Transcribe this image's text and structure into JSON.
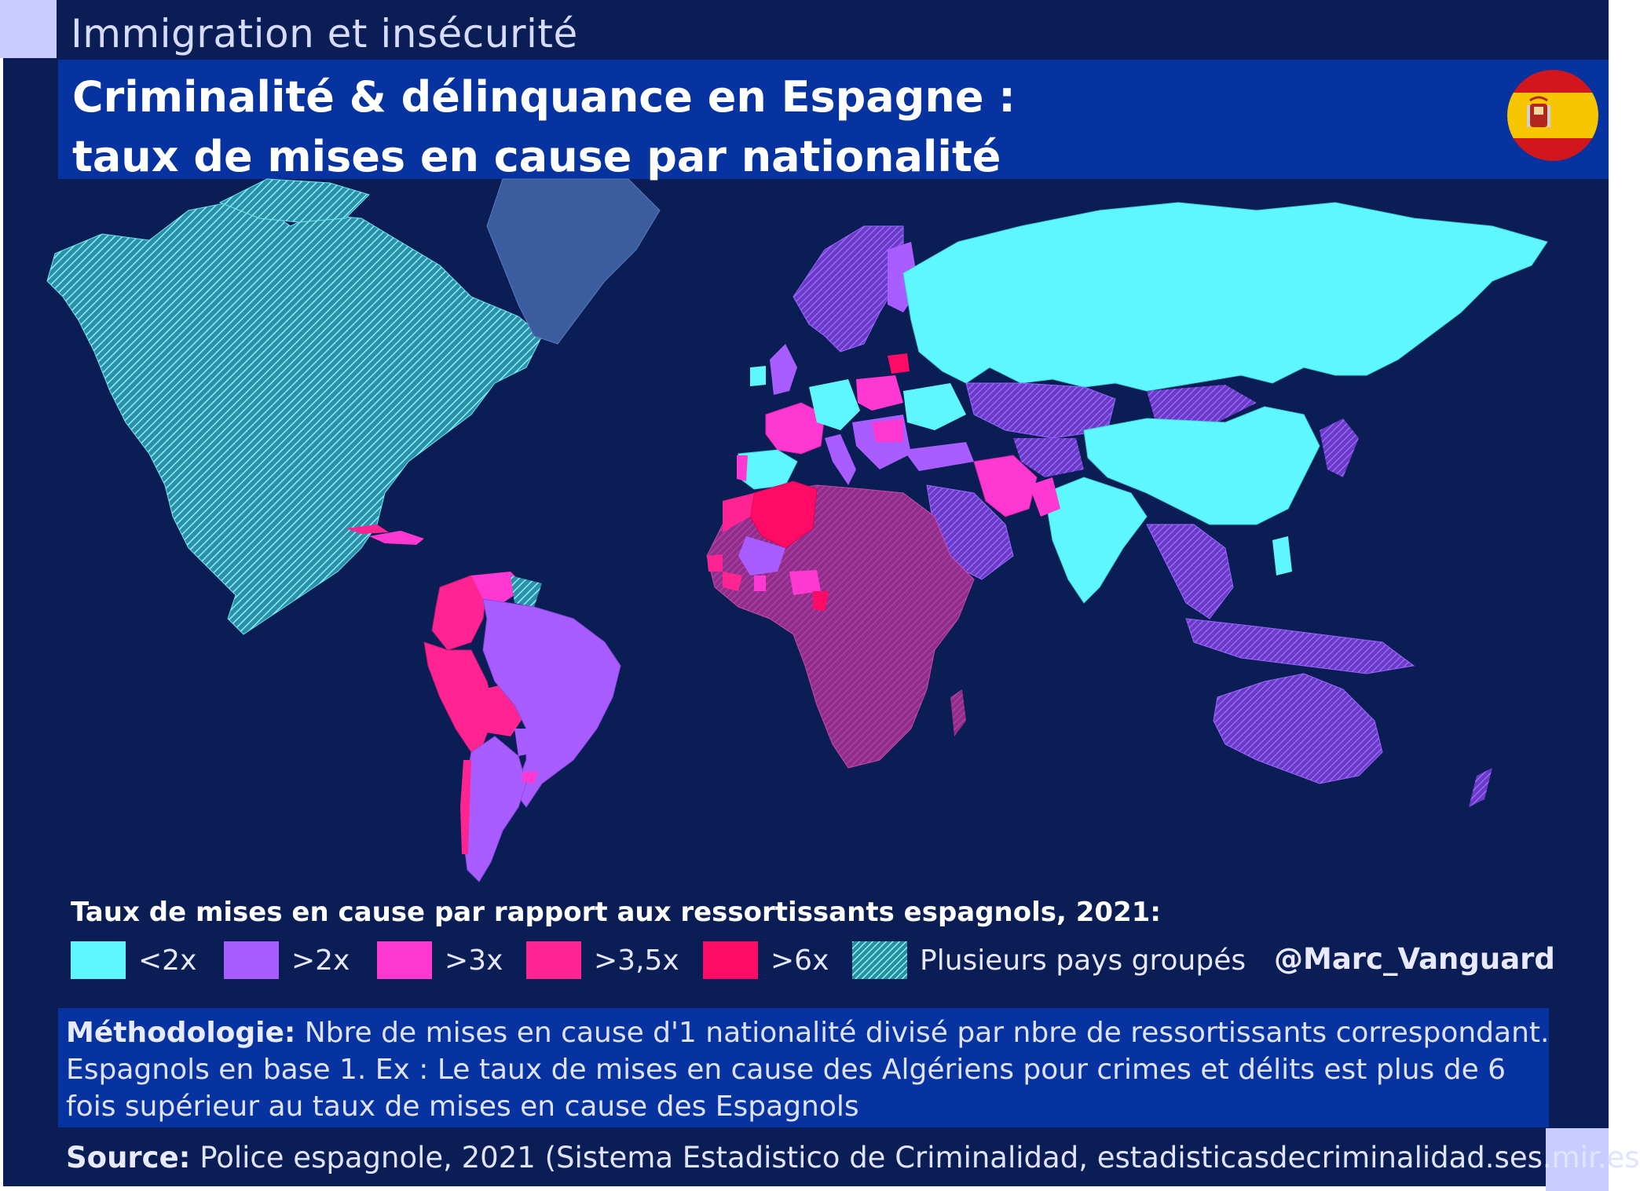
{
  "header": {
    "kicker": "Immigration et insécurité",
    "title": "Criminalité & délinquance en Espagne : taux de mises en cause par nationalité"
  },
  "legend": {
    "title": "Taux de mises en cause par rapport aux ressortissants espagnols, 2021:",
    "items": [
      {
        "label": "<2x",
        "color": "#5ff7ff"
      },
      {
        "label": ">2x",
        "color": "#a95cff"
      },
      {
        "label": ">3x",
        "color": "#ff38d2"
      },
      {
        "label": ">3,5x",
        "color": "#ff2492"
      },
      {
        "label": ">6x",
        "color": "#ff0a64"
      },
      {
        "label": "Plusieurs pays groupés",
        "color": "#3aa7a7",
        "pattern": "hatch"
      }
    ],
    "handle": "@Marc_Vanguard"
  },
  "methodology": {
    "label": "Méthodologie:",
    "text": " Nbre de mises en cause d'1 nationalité divisé par nbre de ressortissants correspondant. Espagnols en base 1. Ex : Le taux de mises en cause des Algériens pour crimes et délits est plus de 6 fois supérieur au taux de mises en cause des Espagnols"
  },
  "source": {
    "label": "Source:",
    "text": " Police espagnole, 2021 (Sistema Estadistico de Criminalidad, estadisticasdecriminalidad.ses.mir.es"
  },
  "map_colors": {
    "ocean": "#0a1d55",
    "lt2": "#5ff7ff",
    "gt2": "#a95cff",
    "gt3": "#ff38d2",
    "gt35": "#ff2492",
    "gt6": "#ff0a64",
    "grouped": "#3aa7a7",
    "greenland": "#3b5d9d"
  }
}
